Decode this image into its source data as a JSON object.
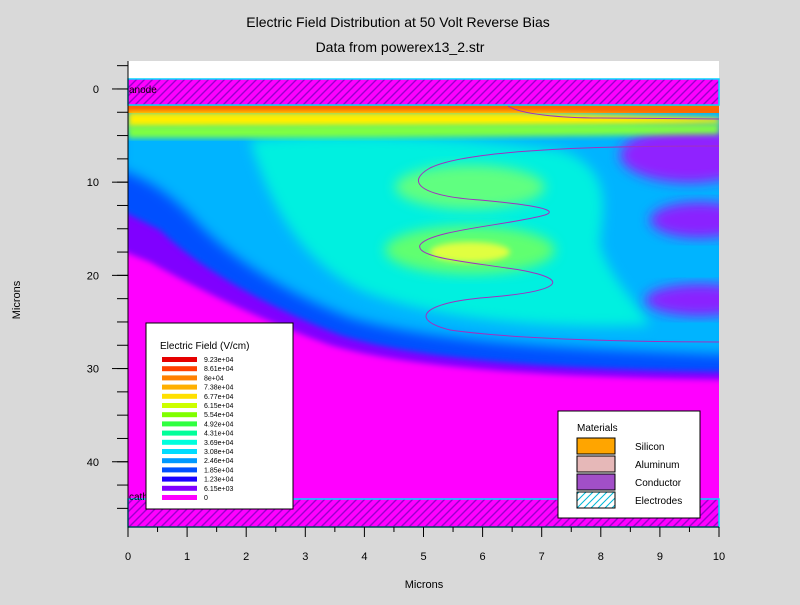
{
  "chart_data": {
    "type": "heatmap",
    "title": "Electric Field Distribution at 50 Volt Reverse Bias",
    "subtitle": "Data from powerex13_2.str",
    "xlabel": "Microns",
    "ylabel": "Microns",
    "xlim": [
      0,
      10
    ],
    "ylim": [
      -3,
      47
    ],
    "y_inverted": true,
    "x_ticks": [
      "0",
      "1",
      "2",
      "3",
      "4",
      "5",
      "6",
      "7",
      "8",
      "9",
      "10"
    ],
    "y_ticks": [
      {
        "value": 0,
        "label": "0"
      },
      {
        "value": 10,
        "label": "10"
      },
      {
        "value": 20,
        "label": "20"
      },
      {
        "value": 30,
        "label": "30"
      },
      {
        "value": 40,
        "label": "40"
      }
    ],
    "electrode_labels": [
      {
        "label": "anode",
        "x": 0.05,
        "y": -1.3
      },
      {
        "label": "cathode",
        "x": 0.05,
        "y": 43.8
      }
    ],
    "field_legend": {
      "title": "Electric Field (V/cm)",
      "levels": [
        {
          "label": "9.23e+04",
          "color": "#e60000"
        },
        {
          "label": "8.61e+04",
          "color": "#ff4000"
        },
        {
          "label": "8e+04",
          "color": "#ff8000"
        },
        {
          "label": "7.38e+04",
          "color": "#ffb000"
        },
        {
          "label": "6.77e+04",
          "color": "#ffe000"
        },
        {
          "label": "6.15e+04",
          "color": "#ccff00"
        },
        {
          "label": "5.54e+04",
          "color": "#80ff00"
        },
        {
          "label": "4.92e+04",
          "color": "#30ff40"
        },
        {
          "label": "4.31e+04",
          "color": "#00ff99"
        },
        {
          "label": "3.69e+04",
          "color": "#00ffdd"
        },
        {
          "label": "3.08e+04",
          "color": "#00ddff"
        },
        {
          "label": "2.46e+04",
          "color": "#0099ff"
        },
        {
          "label": "1.85e+04",
          "color": "#0050ff"
        },
        {
          "label": "1.23e+04",
          "color": "#1a00ff"
        },
        {
          "label": "6.15e+03",
          "color": "#8000ff"
        },
        {
          "label": "0",
          "color": "#ff00ff"
        }
      ]
    },
    "materials_legend": {
      "title": "Materials",
      "items": [
        {
          "label": "Silicon",
          "color": "#ffa500",
          "pattern": "solid"
        },
        {
          "label": "Aluminum",
          "color": "#e6b8b8",
          "pattern": "solid"
        },
        {
          "label": "Conductor",
          "color": "#a24fc8",
          "pattern": "solid"
        },
        {
          "label": "Electrodes",
          "color": "#00b8d8",
          "pattern": "hatch"
        }
      ]
    }
  }
}
